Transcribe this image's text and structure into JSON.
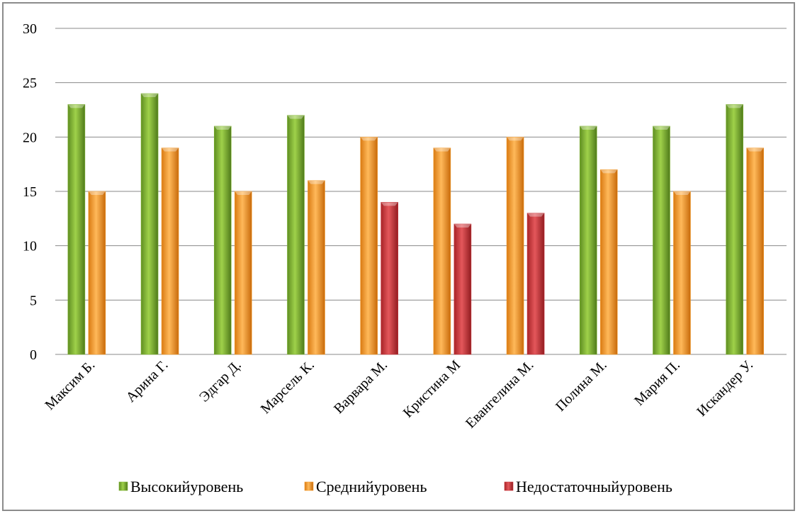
{
  "chart_data": {
    "type": "bar",
    "categories": [
      "Максим Б.",
      "Арина Г.",
      "Эдгар Д.",
      "Марсель К.",
      "Варвара М.",
      "Кристина М",
      "Евангелина М.",
      "Полина М.",
      "Мария П.",
      "Искандер У."
    ],
    "series": [
      {
        "name": "Высокийуровень",
        "color": "#7fb431",
        "values": [
          23,
          24,
          21,
          22,
          null,
          null,
          null,
          21,
          21,
          23
        ]
      },
      {
        "name": "Среднийуровень",
        "color": "#f39b2c",
        "values": [
          15,
          19,
          15,
          16,
          20,
          19,
          20,
          17,
          15,
          19
        ]
      },
      {
        "name": "Недостаточныйуровень",
        "color": "#c9353a",
        "values": [
          null,
          null,
          null,
          null,
          14,
          12,
          13,
          null,
          null,
          null
        ]
      }
    ],
    "y_ticks": [
      "0",
      "5",
      "10",
      "15",
      "20",
      "25",
      "30"
    ],
    "ylim": [
      0,
      30
    ],
    "grid": true,
    "legend_position": "bottom"
  }
}
